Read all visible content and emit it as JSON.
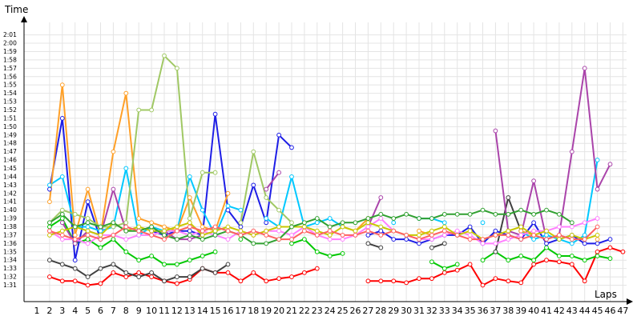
{
  "chart_data": {
    "type": "line",
    "title": "",
    "xlabel": "Laps",
    "ylabel": "Time",
    "xlim": [
      1,
      47
    ],
    "ylim": [
      90,
      122
    ],
    "x_ticks": [
      1,
      2,
      3,
      4,
      5,
      6,
      7,
      8,
      9,
      10,
      11,
      12,
      13,
      14,
      15,
      16,
      17,
      18,
      19,
      20,
      21,
      22,
      23,
      24,
      25,
      26,
      27,
      28,
      29,
      30,
      31,
      32,
      33,
      34,
      35,
      36,
      37,
      38,
      39,
      40,
      41,
      42,
      43,
      44,
      45,
      46,
      47
    ],
    "y_ticks": [
      "1:31",
      "1:32",
      "1:33",
      "1:34",
      "1:35",
      "1:36",
      "1:37",
      "1:38",
      "1:39",
      "1:40",
      "1:41",
      "1:42",
      "1:43",
      "1:44",
      "1:45",
      "1:46",
      "1:47",
      "1:48",
      "1:49",
      "1:50",
      "1:51",
      "1:52",
      "1:53",
      "1:54",
      "1:55",
      "1:56",
      "1:57",
      "1:58",
      "1:59",
      "2:00",
      "2:01"
    ],
    "grid": true,
    "legend": "none",
    "series": [
      {
        "color": "#ff0000",
        "marker": "circle",
        "values": [
          null,
          92.0,
          91.5,
          91.5,
          91.0,
          91.2,
          92.5,
          92.0,
          92.5,
          92.0,
          91.5,
          91.2,
          91.7,
          93.0,
          92.5,
          92.5,
          91.5,
          92.5,
          91.5,
          91.8,
          92.0,
          92.5,
          93.0,
          null,
          null,
          null,
          91.5,
          91.5,
          91.5,
          91.3,
          91.8,
          91.8,
          92.5,
          92.8,
          93.5,
          91.0,
          91.8,
          91.5,
          91.3,
          93.5,
          94.0,
          93.8,
          93.5,
          91.5,
          95.0,
          95.5,
          95.0
        ]
      },
      {
        "color": "#00c800",
        "marker": "circle",
        "values": [
          null,
          98.0,
          99.0,
          96.0,
          96.5,
          95.5,
          96.5,
          95.0,
          94.0,
          94.5,
          93.5,
          93.5,
          94.0,
          94.5,
          95.0,
          null,
          96.5,
          null,
          null,
          null,
          96.0,
          96.5,
          95.0,
          94.5,
          94.8,
          null,
          null,
          null,
          null,
          null,
          null,
          93.8,
          93.0,
          93.5,
          null,
          94.0,
          95.0,
          94.0,
          94.5,
          94.0,
          95.5,
          94.5,
          94.5,
          94.0,
          94.5,
          94.2,
          null
        ]
      },
      {
        "color": "#404040",
        "marker": "circle",
        "values": [
          null,
          94.0,
          93.5,
          93.0,
          92.0,
          93.0,
          93.5,
          92.5,
          92.0,
          92.5,
          91.5,
          92.0,
          92.0,
          93.0,
          92.5,
          93.5,
          null,
          null,
          null,
          null,
          null,
          null,
          null,
          null,
          null,
          null,
          96.0,
          95.5,
          null,
          null,
          null,
          95.5,
          96.0,
          null,
          null,
          null,
          95.0,
          101.5,
          97.5,
          null,
          null,
          null,
          null,
          null,
          null,
          null,
          null
        ]
      },
      {
        "color": "#1e1ee6",
        "marker": "circle",
        "values": [
          null,
          102.5,
          111.0,
          94.0,
          101.0,
          96.5,
          null,
          null,
          null,
          97.5,
          97.0,
          97.5,
          97.5,
          97.0,
          111.5,
          100.0,
          98.0,
          103.0,
          98.5,
          109.0,
          107.5,
          null,
          null,
          null,
          null,
          null,
          97.0,
          97.5,
          96.5,
          96.5,
          96.0,
          96.5,
          97.0,
          97.0,
          98.0,
          96.0,
          97.5,
          97.0,
          96.5,
          98.5,
          96.0,
          96.5,
          97.0,
          96.0,
          96.0,
          96.5,
          null
        ]
      },
      {
        "color": "#00c8ff",
        "marker": "circle",
        "values": [
          null,
          103.0,
          104.0,
          98.0,
          98.0,
          97.5,
          98.0,
          105.0,
          97.0,
          98.0,
          97.5,
          97.5,
          104.0,
          100.0,
          97.0,
          100.5,
          100.0,
          null,
          99.0,
          98.0,
          104.0,
          98.0,
          98.5,
          99.0,
          98.0,
          null,
          98.5,
          null,
          98.5,
          null,
          99.0,
          99.0,
          98.5,
          null,
          null,
          98.5,
          null,
          null,
          97.5,
          96.5,
          97.0,
          96.5,
          96.0,
          97.0,
          106.0,
          null,
          null
        ]
      },
      {
        "color": "#aa44aa",
        "marker": "circle",
        "values": [
          null,
          null,
          98.5,
          96.0,
          97.5,
          97.0,
          102.5,
          97.5,
          null,
          97.0,
          97.5,
          96.5,
          96.5,
          97.0,
          null,
          null,
          null,
          null,
          102.5,
          104.5,
          null,
          null,
          null,
          null,
          null,
          null,
          98.0,
          101.5,
          null,
          null,
          null,
          null,
          null,
          null,
          null,
          null,
          109.5,
          97.5,
          97.0,
          103.5,
          96.5,
          97.0,
          107.0,
          117.0,
          102.5,
          105.5,
          null
        ]
      },
      {
        "color": "#ffa028",
        "marker": "circle",
        "values": [
          null,
          101.0,
          115.0,
          97.0,
          102.5,
          97.0,
          107.0,
          114.0,
          99.0,
          98.5,
          98.0,
          97.5,
          101.5,
          98.0,
          97.5,
          102.0,
          null,
          null,
          null,
          null,
          null,
          null,
          null,
          null,
          98.0,
          97.5,
          99.0,
          null,
          null,
          null,
          97.5,
          97.0,
          null,
          null,
          null,
          null,
          null,
          null,
          97.5,
          97.0,
          null,
          97.0,
          null,
          null,
          96.5,
          null,
          null
        ]
      },
      {
        "color": "#a0c864",
        "marker": "circle",
        "values": [
          null,
          98.5,
          100.0,
          99.5,
          99.0,
          98.0,
          98.0,
          98.5,
          112.0,
          112.0,
          118.5,
          117.0,
          99.0,
          104.5,
          104.5,
          null,
          98.5,
          107.0,
          101.5,
          100.0,
          98.5,
          null,
          null,
          null,
          null,
          null,
          null,
          null,
          null,
          null,
          null,
          null,
          null,
          null,
          null,
          null,
          null,
          null,
          null,
          null,
          null,
          null,
          null,
          null,
          null,
          null,
          null
        ]
      },
      {
        "color": "#ff80ff",
        "marker": "circle",
        "values": [
          null,
          97.5,
          96.5,
          96.5,
          96.0,
          97.0,
          97.0,
          96.5,
          97.0,
          97.0,
          97.5,
          97.5,
          97.0,
          97.5,
          97.0,
          96.5,
          97.5,
          97.0,
          97.5,
          97.5,
          97.0,
          98.0,
          97.0,
          96.5,
          96.5,
          97.0,
          98.0,
          99.0,
          97.5,
          97.0,
          96.5,
          96.5,
          97.0,
          97.5,
          97.0,
          96.0,
          96.0,
          96.5,
          97.0,
          97.5,
          97.5,
          98.0,
          98.0,
          98.5,
          99.0,
          null,
          null
        ]
      },
      {
        "color": "#c8c800",
        "marker": "circle",
        "values": [
          null,
          97.0,
          97.5,
          98.0,
          97.5,
          97.0,
          98.5,
          97.5,
          98.0,
          97.5,
          97.5,
          98.0,
          98.5,
          97.0,
          97.5,
          98.0,
          97.5,
          97.0,
          97.5,
          98.0,
          98.0,
          98.0,
          97.5,
          97.0,
          98.0,
          97.5,
          98.5,
          98.0,
          97.5,
          97.0,
          97.0,
          97.5,
          98.0,
          97.0,
          97.5,
          96.5,
          97.0,
          97.5,
          98.0,
          97.0,
          97.5,
          96.5,
          97.0,
          96.5,
          97.0,
          null,
          null
        ]
      },
      {
        "color": "#30a030",
        "marker": "circle",
        "values": [
          null,
          98.5,
          99.5,
          98.0,
          98.5,
          98.0,
          98.5,
          97.5,
          97.5,
          98.0,
          97.0,
          96.5,
          97.0,
          96.5,
          97.0,
          97.5,
          97.0,
          96.0,
          96.0,
          96.5,
          98.0,
          98.5,
          99.0,
          98.0,
          98.5,
          98.5,
          99.0,
          99.5,
          99.0,
          99.5,
          99.0,
          99.0,
          99.5,
          99.5,
          99.5,
          100.0,
          99.5,
          99.5,
          100.0,
          99.5,
          100.0,
          99.5,
          98.5,
          null,
          null,
          null,
          null
        ]
      },
      {
        "color": "#ff6060",
        "marker": "circle",
        "values": [
          null,
          97.5,
          97.0,
          96.5,
          97.0,
          96.5,
          97.0,
          98.0,
          97.5,
          97.0,
          96.5,
          97.5,
          98.0,
          97.5,
          98.0,
          97.5,
          97.0,
          97.5,
          97.0,
          96.5,
          96.5,
          97.5,
          97.0,
          97.5,
          97.0,
          97.0,
          97.5,
          97.0,
          97.5,
          97.0,
          96.5,
          97.0,
          97.5,
          97.0,
          96.5,
          96.5,
          97.0,
          97.0,
          96.5,
          97.0,
          96.5,
          97.0,
          96.5,
          96.5,
          98.0,
          null,
          null
        ]
      }
    ]
  }
}
